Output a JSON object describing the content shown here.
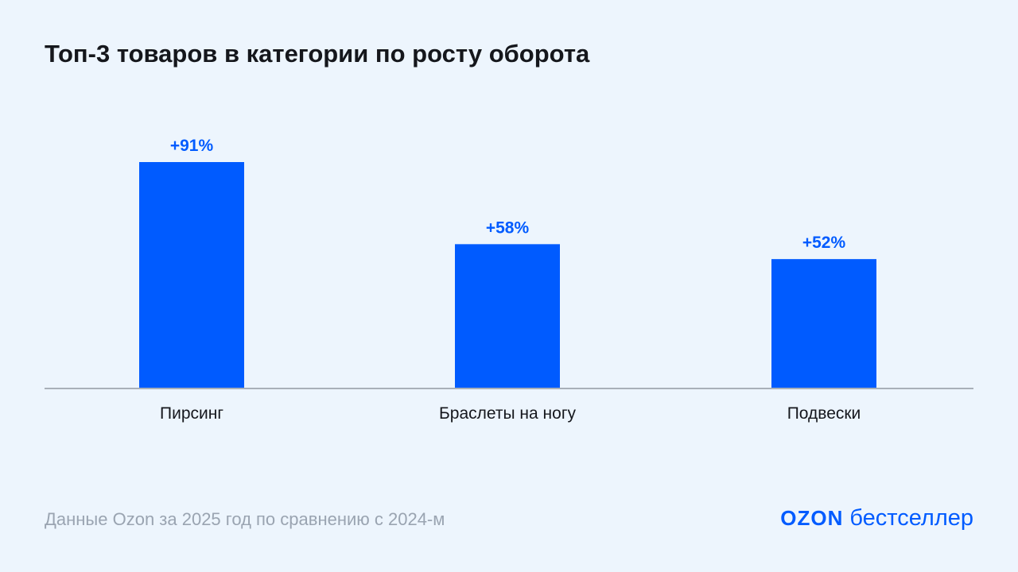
{
  "chart_data": {
    "type": "bar",
    "title": "Топ-3 товаров в категории по росту оборота",
    "categories": [
      "Пирсинг",
      "Браслеты на ногу",
      "Подвески"
    ],
    "values": [
      91,
      58,
      52
    ],
    "data_labels": [
      "+91%",
      "+58%",
      "+52%"
    ],
    "unit": "%",
    "xlabel": "",
    "ylabel": "",
    "grid": false,
    "bar_color": "#005bff",
    "label_color": "#005bff"
  },
  "footer": "Данные Ozon за 2025 год по сравнению с 2024-м",
  "logo": {
    "brand": "OZON",
    "text": "бестселлер"
  },
  "colors": {
    "background": "#edf5fd",
    "accent": "#005bff"
  }
}
